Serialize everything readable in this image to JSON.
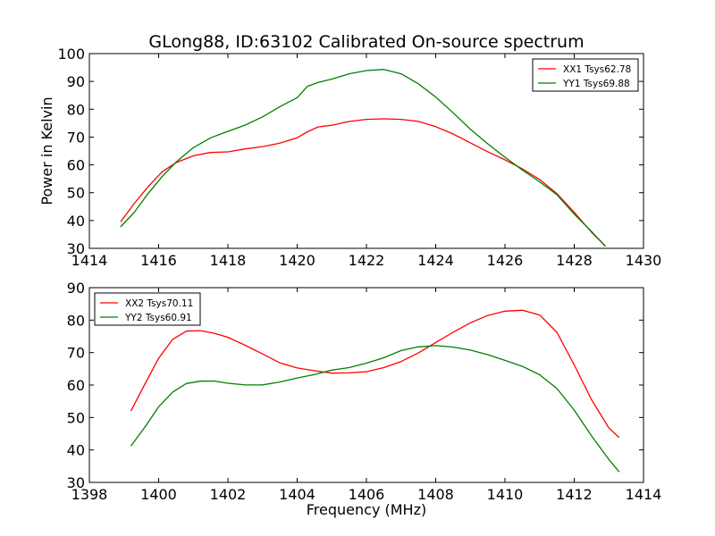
{
  "chart_data": [
    {
      "type": "line",
      "title": "GLong88, ID:63102 Calibrated On-source spectrum",
      "xlabel": "",
      "ylabel": "Power in Kelvin",
      "xlim": [
        1414,
        1430
      ],
      "ylim": [
        30,
        100
      ],
      "xticks": [
        "1414",
        "1416",
        "1418",
        "1420",
        "1422",
        "1424",
        "1426",
        "1428",
        "1430"
      ],
      "yticks": [
        "30",
        "40",
        "50",
        "60",
        "70",
        "80",
        "90",
        "100"
      ],
      "legend_position": "top-right",
      "series": [
        {
          "name": "XX1 Tsys62.78",
          "color": "#ff0000",
          "x": [
            1414.9,
            1415.3,
            1415.7,
            1416.1,
            1416.5,
            1417.0,
            1417.5,
            1418.0,
            1418.5,
            1419.0,
            1419.5,
            1420.0,
            1420.3,
            1420.6,
            1421.0,
            1421.5,
            1422.0,
            1422.5,
            1423.0,
            1423.5,
            1424.0,
            1424.5,
            1425.0,
            1425.5,
            1426.0,
            1426.5,
            1427.0,
            1427.5,
            1428.0,
            1428.5,
            1428.9
          ],
          "y": [
            39.5,
            46,
            52,
            57.5,
            61,
            63.5,
            64.5,
            64.5,
            65.5,
            66.5,
            68,
            70,
            72,
            73.5,
            74,
            75.5,
            76.5,
            76.8,
            76.5,
            75.5,
            73.5,
            71,
            68,
            65,
            62,
            58.5,
            54.5,
            49.5,
            43,
            36,
            31
          ]
        },
        {
          "name": "YY1 Tsys69.88",
          "color": "#008000",
          "x": [
            1414.9,
            1415.3,
            1415.7,
            1416.1,
            1416.5,
            1417.0,
            1417.5,
            1418.0,
            1418.5,
            1419.0,
            1419.5,
            1420.0,
            1420.3,
            1420.6,
            1421.0,
            1421.5,
            1422.0,
            1422.5,
            1423.0,
            1423.5,
            1424.0,
            1424.5,
            1425.0,
            1425.5,
            1426.0,
            1426.5,
            1427.0,
            1427.5,
            1428.0,
            1428.5,
            1428.9
          ],
          "y": [
            37.5,
            43,
            50,
            56,
            61,
            66,
            69.5,
            72,
            74.5,
            77.5,
            81,
            84,
            88,
            89.5,
            91,
            93,
            94,
            94.2,
            92.5,
            89,
            84.5,
            79,
            73,
            67.5,
            62.5,
            58,
            54,
            49.5,
            42.5,
            36,
            30.5
          ]
        }
      ]
    },
    {
      "type": "line",
      "title": "",
      "xlabel": "Frequency (MHz)",
      "ylabel": "",
      "xlim": [
        1398,
        1414
      ],
      "ylim": [
        30,
        90
      ],
      "xticks": [
        "1398",
        "1400",
        "1402",
        "1404",
        "1406",
        "1408",
        "1410",
        "1412",
        "1414"
      ],
      "yticks": [
        "30",
        "40",
        "50",
        "60",
        "70",
        "80",
        "90"
      ],
      "legend_position": "top-left",
      "series": [
        {
          "name": "XX2 Tsys70.11",
          "color": "#ff0000",
          "x": [
            1399.2,
            1399.6,
            1400.0,
            1400.4,
            1400.8,
            1401.2,
            1401.6,
            1402.0,
            1402.5,
            1403.0,
            1403.5,
            1404.0,
            1404.5,
            1405.0,
            1405.5,
            1406.0,
            1406.5,
            1407.0,
            1407.5,
            1408.0,
            1408.5,
            1409.0,
            1409.5,
            1410.0,
            1410.5,
            1411.0,
            1411.5,
            1412.0,
            1412.5,
            1413.0,
            1413.3
          ],
          "y": [
            52,
            60,
            68,
            74,
            76.8,
            77,
            76,
            74.5,
            72,
            69.5,
            67,
            65.5,
            64.5,
            63.5,
            63.5,
            64,
            65.5,
            67.5,
            70,
            73,
            76,
            79,
            81.5,
            83,
            83.2,
            81.5,
            76,
            66,
            55.5,
            47,
            44
          ]
        },
        {
          "name": "YY2 Tsys60.91",
          "color": "#008000",
          "x": [
            1399.2,
            1399.6,
            1400.0,
            1400.4,
            1400.8,
            1401.2,
            1401.6,
            1402.0,
            1402.5,
            1403.0,
            1403.5,
            1404.0,
            1404.5,
            1405.0,
            1405.5,
            1406.0,
            1406.5,
            1407.0,
            1407.5,
            1408.0,
            1408.5,
            1409.0,
            1409.5,
            1410.0,
            1410.5,
            1411.0,
            1411.5,
            1412.0,
            1412.5,
            1413.0,
            1413.3
          ],
          "y": [
            41,
            47,
            53.5,
            58,
            60.5,
            61,
            61,
            60.5,
            60.2,
            60.3,
            61,
            62,
            63,
            64.5,
            65.5,
            67,
            68.5,
            70.5,
            71.5,
            72,
            71.8,
            71,
            69.5,
            67.5,
            65.5,
            63,
            59,
            52.5,
            44.5,
            37,
            33
          ]
        }
      ]
    }
  ]
}
